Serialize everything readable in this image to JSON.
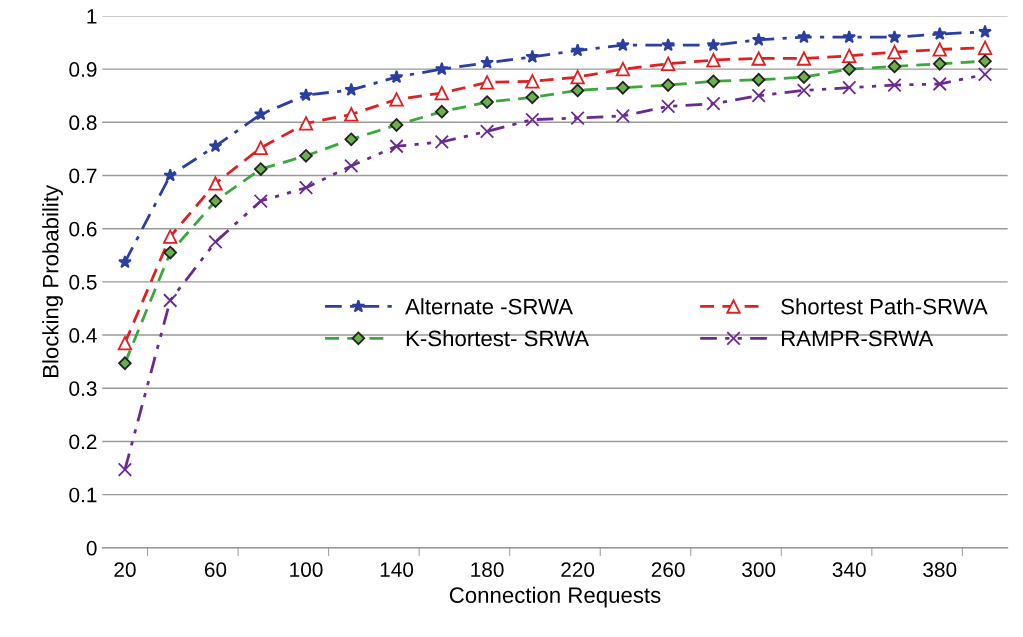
{
  "chart_data": {
    "type": "line",
    "xlabel": "Connection Requests",
    "ylabel": "Blocking Probability",
    "categories": [
      "20",
      null,
      "60",
      null,
      "100",
      null,
      "140",
      null,
      "180",
      null,
      "220",
      null,
      "260",
      null,
      "300",
      null,
      "340",
      null,
      "380",
      null
    ],
    "ylim": [
      0,
      1
    ],
    "yticks": [
      0,
      0.1,
      0.2,
      0.3,
      0.4,
      0.5,
      0.6,
      0.7,
      0.8,
      0.9,
      1
    ],
    "grid": "y",
    "legend": "center right",
    "series": [
      {
        "name": "Alternate -SRWA",
        "color": "#2b3fa0",
        "marker": "star",
        "line_style": "dashdot",
        "values": [
          0.537,
          0.7,
          0.755,
          0.815,
          0.851,
          0.861,
          0.885,
          0.9,
          0.912,
          0.923,
          0.935,
          0.945,
          0.945,
          0.945,
          0.955,
          0.96,
          0.96,
          0.96,
          0.966,
          0.97
        ]
      },
      {
        "name": "Shortest Path-SRWA",
        "color": "#e02020",
        "marker": "triangle",
        "line_style": "dashed",
        "values": [
          0.385,
          0.585,
          0.685,
          0.752,
          0.798,
          0.815,
          0.843,
          0.855,
          0.875,
          0.877,
          0.885,
          0.9,
          0.91,
          0.917,
          0.92,
          0.92,
          0.925,
          0.932,
          0.937,
          0.94
        ]
      },
      {
        "name": "K-Shortest- SRWA",
        "color": "#3aa83a",
        "marker": "diamond",
        "line_style": "dashed",
        "values": [
          0.347,
          0.555,
          0.652,
          0.712,
          0.737,
          0.768,
          0.795,
          0.82,
          0.838,
          0.847,
          0.86,
          0.865,
          0.87,
          0.877,
          0.88,
          0.885,
          0.9,
          0.905,
          0.91,
          0.915
        ]
      },
      {
        "name": "RAMPR-SRWA",
        "color": "#6a2a90",
        "marker": "cross",
        "line_style": "dashdotdot",
        "values": [
          0.147,
          0.465,
          0.575,
          0.652,
          0.677,
          0.718,
          0.755,
          0.763,
          0.783,
          0.805,
          0.808,
          0.812,
          0.83,
          0.835,
          0.85,
          0.86,
          0.865,
          0.87,
          0.872,
          0.89
        ]
      }
    ]
  }
}
